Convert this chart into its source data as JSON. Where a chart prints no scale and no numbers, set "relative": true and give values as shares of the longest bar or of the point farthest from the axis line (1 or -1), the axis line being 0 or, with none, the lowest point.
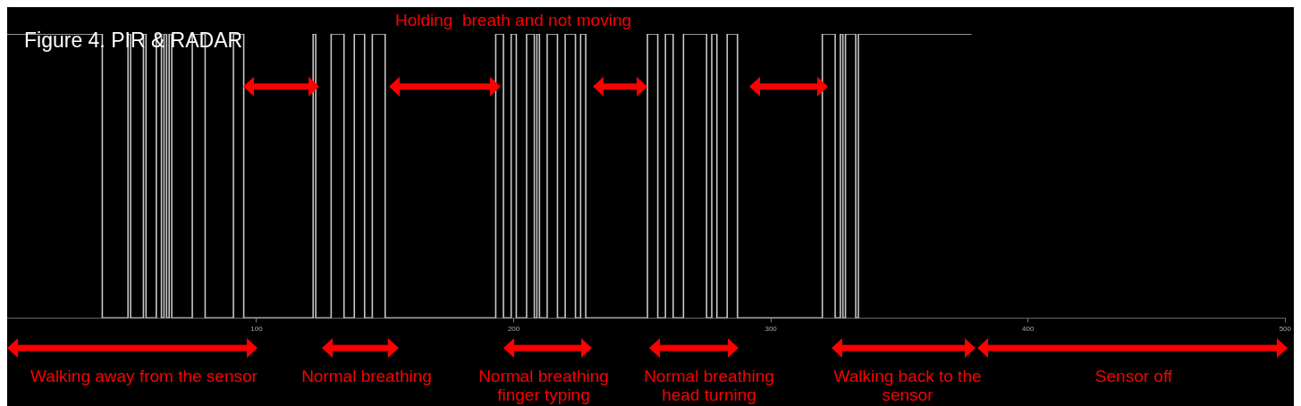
{
  "chart_data": {
    "type": "step",
    "title": "Figure 4. PIR & RADAR",
    "relative": true,
    "x": [
      3,
      40,
      50,
      51,
      56,
      57,
      61,
      63,
      64,
      65,
      66,
      67,
      75,
      80,
      91,
      95,
      122,
      123,
      129,
      134,
      138,
      142,
      145,
      150,
      193,
      196,
      199,
      201,
      205,
      208,
      209,
      210,
      213,
      217,
      220,
      224,
      226,
      228,
      252,
      256,
      259,
      262,
      266,
      275,
      277,
      279,
      283,
      287,
      320,
      325,
      327,
      328,
      329,
      333,
      334,
      378
    ],
    "series": [
      {
        "color": "#c8c8c8",
        "values": [
          1,
          0,
          1,
          0,
          1,
          0,
          1,
          0,
          1,
          0,
          1,
          0,
          1,
          0,
          1,
          0,
          1,
          0,
          1,
          0,
          1,
          0,
          1,
          0,
          1,
          0,
          1,
          0,
          1,
          0,
          1,
          0,
          1,
          0,
          1,
          0,
          1,
          0,
          1,
          0,
          1,
          0,
          1,
          0,
          1,
          0,
          1,
          0,
          1,
          0,
          1,
          0,
          1,
          0,
          1,
          1
        ]
      }
    ],
    "xlim": [
      3,
      500
    ],
    "xticks": [
      100,
      200,
      300,
      400,
      500
    ],
    "grid": false,
    "legend": false,
    "marker": "none",
    "annotations": [
      "Holding  breath and not moving",
      "Walking away from the sensor",
      "Normal breathing",
      "Normal breathing finger typing",
      "Normal breathing head turning",
      "Walking back to the sensor",
      "Sensor off"
    ]
  }
}
